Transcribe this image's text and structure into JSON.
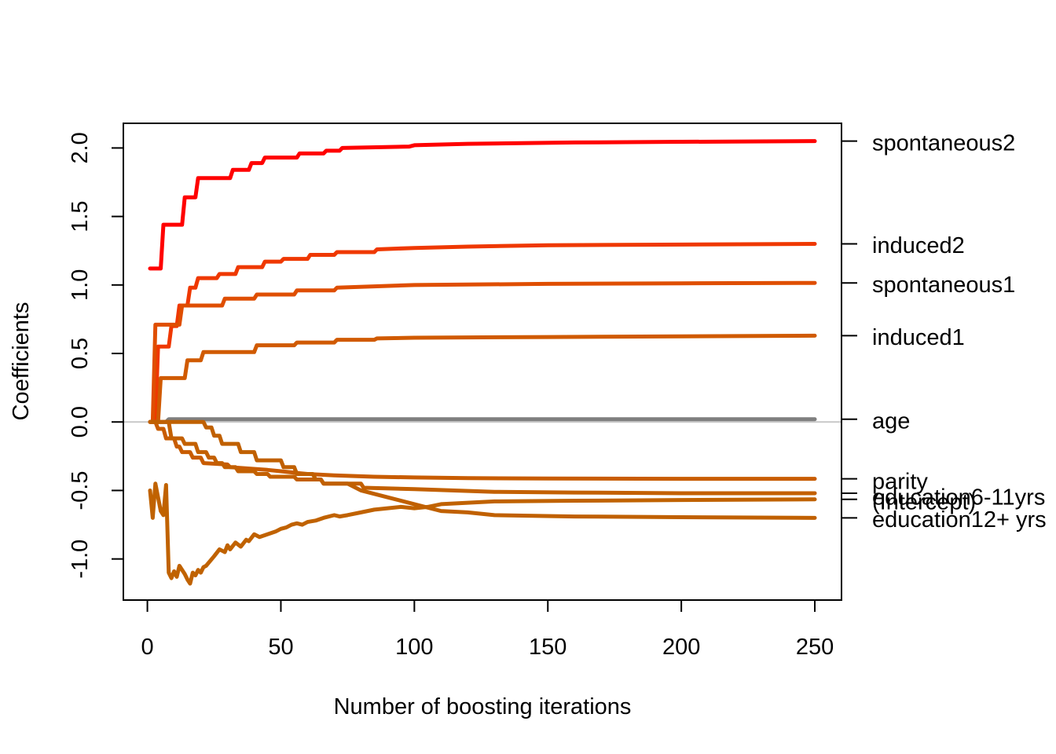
{
  "chart_data": {
    "type": "line",
    "title": "",
    "xlabel": "Number of boosting iterations",
    "ylabel": "Coefficients",
    "xlim": [
      -9,
      260
    ],
    "ylim": [
      -1.3,
      2.18
    ],
    "xticks": [
      0,
      50,
      100,
      150,
      200,
      250
    ],
    "yticks": [
      -1.0,
      -0.5,
      0.0,
      0.5,
      1.0,
      1.5,
      2.0
    ],
    "xtick_labels": [
      "0",
      "50",
      "100",
      "150",
      "200",
      "250"
    ],
    "ytick_labels": [
      "-1.0",
      "-0.5",
      "0.0",
      "0.5",
      "1.0",
      "1.5",
      "2.0"
    ],
    "zero_line": true,
    "grid": false,
    "legend": "right-margin labels",
    "series": [
      {
        "name": "spontaneous2",
        "color": "#ff0000",
        "x": [
          1,
          5,
          6,
          13,
          14,
          18,
          19,
          31,
          32,
          38,
          39,
          43,
          44,
          56,
          57,
          66,
          67,
          72,
          73,
          98,
          100,
          120,
          140,
          160,
          200,
          250
        ],
        "y": [
          1.12,
          1.12,
          1.44,
          1.44,
          1.64,
          1.64,
          1.78,
          1.78,
          1.84,
          1.84,
          1.89,
          1.89,
          1.93,
          1.93,
          1.96,
          1.96,
          1.98,
          1.98,
          2.0,
          2.01,
          2.02,
          2.03,
          2.035,
          2.04,
          2.045,
          2.05
        ]
      },
      {
        "name": "induced2",
        "color": "#ef3800",
        "x": [
          1,
          3,
          4,
          8,
          9,
          11,
          12,
          15,
          16,
          18,
          19,
          26,
          27,
          33,
          34,
          43,
          44,
          50,
          51,
          60,
          61,
          70,
          71,
          85,
          86,
          100,
          120,
          150,
          200,
          250
        ],
        "y": [
          0.0,
          0.0,
          0.55,
          0.55,
          0.7,
          0.7,
          0.85,
          0.85,
          0.98,
          0.98,
          1.05,
          1.05,
          1.08,
          1.08,
          1.13,
          1.13,
          1.17,
          1.17,
          1.19,
          1.19,
          1.22,
          1.22,
          1.24,
          1.24,
          1.26,
          1.27,
          1.28,
          1.29,
          1.295,
          1.3
        ]
      },
      {
        "name": "spontaneous1",
        "color": "#df4e00",
        "x": [
          1,
          2,
          3,
          12,
          13,
          16,
          17,
          28,
          29,
          40,
          41,
          55,
          56,
          70,
          71,
          100,
          150,
          200,
          250
        ],
        "y": [
          0.0,
          0.0,
          0.71,
          0.71,
          0.85,
          0.85,
          0.85,
          0.85,
          0.9,
          0.9,
          0.93,
          0.93,
          0.96,
          0.96,
          0.98,
          1.0,
          1.008,
          1.012,
          1.015
        ]
      },
      {
        "name": "induced1",
        "color": "#d05a00",
        "x": [
          1,
          4,
          5,
          14,
          15,
          20,
          21,
          40,
          41,
          55,
          56,
          70,
          71,
          85,
          86,
          100,
          150,
          200,
          250
        ],
        "y": [
          0.0,
          0.0,
          0.32,
          0.32,
          0.45,
          0.45,
          0.51,
          0.51,
          0.56,
          0.56,
          0.58,
          0.58,
          0.6,
          0.6,
          0.61,
          0.615,
          0.62,
          0.625,
          0.63
        ]
      },
      {
        "name": "age",
        "color": "#7f7f7f",
        "x": [
          1,
          7,
          8,
          250
        ],
        "y": [
          0.0,
          0.0,
          0.02,
          0.02
        ]
      },
      {
        "name": "parity",
        "color": "#c85c00",
        "x": [
          1,
          3,
          4,
          6,
          7,
          10,
          11,
          12,
          13,
          16,
          17,
          20,
          21,
          30,
          31,
          45,
          50,
          60,
          70,
          85,
          100,
          120,
          150,
          200,
          250
        ],
        "y": [
          0.0,
          0.0,
          -0.05,
          -0.05,
          -0.12,
          -0.12,
          -0.18,
          -0.18,
          -0.22,
          -0.22,
          -0.26,
          -0.26,
          -0.3,
          -0.31,
          -0.33,
          -0.35,
          -0.36,
          -0.38,
          -0.39,
          -0.4,
          -0.405,
          -0.41,
          -0.413,
          -0.415,
          -0.415
        ]
      },
      {
        "name": "education6-11yrs",
        "color": "#c36000",
        "x": [
          1,
          8,
          9,
          13,
          14,
          18,
          19,
          22,
          23,
          25,
          26,
          28,
          29,
          33,
          34,
          40,
          41,
          45,
          46,
          55,
          56,
          65,
          66,
          80,
          81,
          100,
          130,
          160,
          200,
          250
        ],
        "y": [
          0.0,
          0.0,
          -0.12,
          -0.12,
          -0.16,
          -0.16,
          -0.22,
          -0.22,
          -0.26,
          -0.26,
          -0.3,
          -0.3,
          -0.33,
          -0.33,
          -0.36,
          -0.36,
          -0.38,
          -0.38,
          -0.4,
          -0.4,
          -0.42,
          -0.42,
          -0.45,
          -0.45,
          -0.48,
          -0.49,
          -0.51,
          -0.515,
          -0.52,
          -0.52
        ]
      },
      {
        "name": "(Intercept)",
        "color": "#c06200",
        "x": [
          1,
          2,
          3,
          4,
          5,
          6,
          7,
          8,
          9,
          10,
          11,
          12,
          13,
          14,
          15,
          16,
          17,
          18,
          19,
          20,
          21,
          22,
          25,
          27,
          29,
          30,
          31,
          33,
          35,
          37,
          38,
          40,
          42,
          45,
          48,
          50,
          52,
          54,
          56,
          58,
          60,
          63,
          66,
          70,
          72,
          75,
          80,
          85,
          90,
          95,
          100,
          105,
          110,
          130,
          160,
          200,
          250
        ],
        "y": [
          -0.5,
          -0.7,
          -0.45,
          -0.55,
          -0.65,
          -0.68,
          -0.46,
          -1.1,
          -1.14,
          -1.09,
          -1.13,
          -1.05,
          -1.08,
          -1.11,
          -1.15,
          -1.18,
          -1.1,
          -1.12,
          -1.08,
          -1.1,
          -1.06,
          -1.05,
          -0.98,
          -0.93,
          -0.95,
          -0.9,
          -0.93,
          -0.88,
          -0.91,
          -0.86,
          -0.87,
          -0.82,
          -0.84,
          -0.82,
          -0.8,
          -0.78,
          -0.77,
          -0.75,
          -0.74,
          -0.75,
          -0.73,
          -0.72,
          -0.7,
          -0.68,
          -0.69,
          -0.68,
          -0.66,
          -0.64,
          -0.63,
          -0.62,
          -0.63,
          -0.62,
          -0.6,
          -0.58,
          -0.575,
          -0.57,
          -0.565
        ]
      },
      {
        "name": "education12+ yrs",
        "color": "#c06000",
        "x": [
          1,
          21,
          22,
          24,
          25,
          27,
          28,
          34,
          35,
          40,
          41,
          50,
          51,
          55,
          56,
          62,
          63,
          65,
          66,
          75,
          80,
          90,
          100,
          110,
          120,
          130,
          160,
          200,
          250
        ],
        "y": [
          0.0,
          0.0,
          -0.04,
          -0.04,
          -0.1,
          -0.1,
          -0.16,
          -0.16,
          -0.22,
          -0.22,
          -0.28,
          -0.28,
          -0.33,
          -0.33,
          -0.38,
          -0.38,
          -0.42,
          -0.42,
          -0.45,
          -0.45,
          -0.5,
          -0.55,
          -0.6,
          -0.65,
          -0.66,
          -0.68,
          -0.69,
          -0.695,
          -0.7
        ]
      }
    ],
    "right_labels": [
      {
        "text": "spontaneous2",
        "y": 2.05,
        "text_y": 2.04
      },
      {
        "text": "induced2",
        "y": 1.3,
        "text_y": 1.29
      },
      {
        "text": "spontaneous1",
        "y": 1.015,
        "text_y": 1.005
      },
      {
        "text": "induced1",
        "y": 0.63,
        "text_y": 0.62
      },
      {
        "text": "age",
        "y": 0.02,
        "text_y": 0.01
      },
      {
        "text": "parity",
        "y": -0.415,
        "text_y": -0.43
      },
      {
        "text": "education6-11yrs",
        "y": -0.52,
        "text_y": -0.545
      },
      {
        "text": "(Intercept)",
        "y": -0.565,
        "text_y": -0.58
      },
      {
        "text": "education12+ yrs",
        "y": -0.7,
        "text_y": -0.71
      }
    ]
  }
}
